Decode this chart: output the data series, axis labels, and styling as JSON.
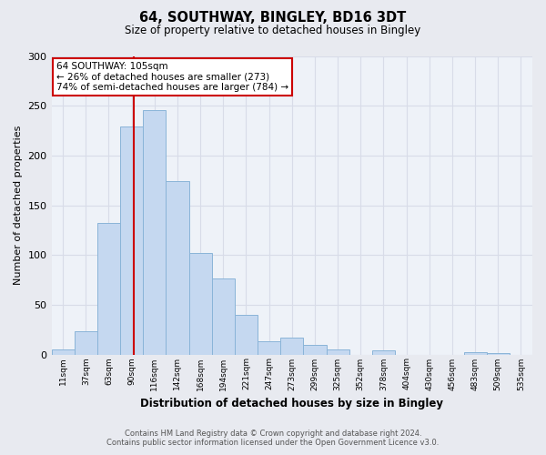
{
  "title": "64, SOUTHWAY, BINGLEY, BD16 3DT",
  "subtitle": "Size of property relative to detached houses in Bingley",
  "xlabel": "Distribution of detached houses by size in Bingley",
  "ylabel": "Number of detached properties",
  "bar_color": "#c5d8f0",
  "bar_edge_color": "#8ab4d8",
  "background_color": "#e8eaf0",
  "plot_bg_color": "#eef2f8",
  "grid_color": "#d8dce8",
  "bin_labels": [
    "11sqm",
    "37sqm",
    "63sqm",
    "90sqm",
    "116sqm",
    "142sqm",
    "168sqm",
    "194sqm",
    "221sqm",
    "247sqm",
    "273sqm",
    "299sqm",
    "325sqm",
    "352sqm",
    "378sqm",
    "404sqm",
    "430sqm",
    "456sqm",
    "483sqm",
    "509sqm",
    "535sqm"
  ],
  "bin_edges": [
    11,
    37,
    63,
    90,
    116,
    142,
    168,
    194,
    221,
    247,
    273,
    299,
    325,
    352,
    378,
    404,
    430,
    456,
    483,
    509,
    535,
    561
  ],
  "values": [
    5,
    23,
    132,
    229,
    246,
    174,
    102,
    76,
    40,
    13,
    17,
    10,
    5,
    0,
    4,
    0,
    0,
    0,
    2,
    1,
    0
  ],
  "ylim": [
    0,
    300
  ],
  "yticks": [
    0,
    50,
    100,
    150,
    200,
    250,
    300
  ],
  "annotation_text": "64 SOUTHWAY: 105sqm\n← 26% of detached houses are smaller (273)\n74% of semi-detached houses are larger (784) →",
  "annotation_box_color": "#ffffff",
  "annotation_border_color": "#cc0000",
  "property_size": 105,
  "vline_color": "#cc0000",
  "footer_line1": "Contains HM Land Registry data © Crown copyright and database right 2024.",
  "footer_line2": "Contains public sector information licensed under the Open Government Licence v3.0."
}
